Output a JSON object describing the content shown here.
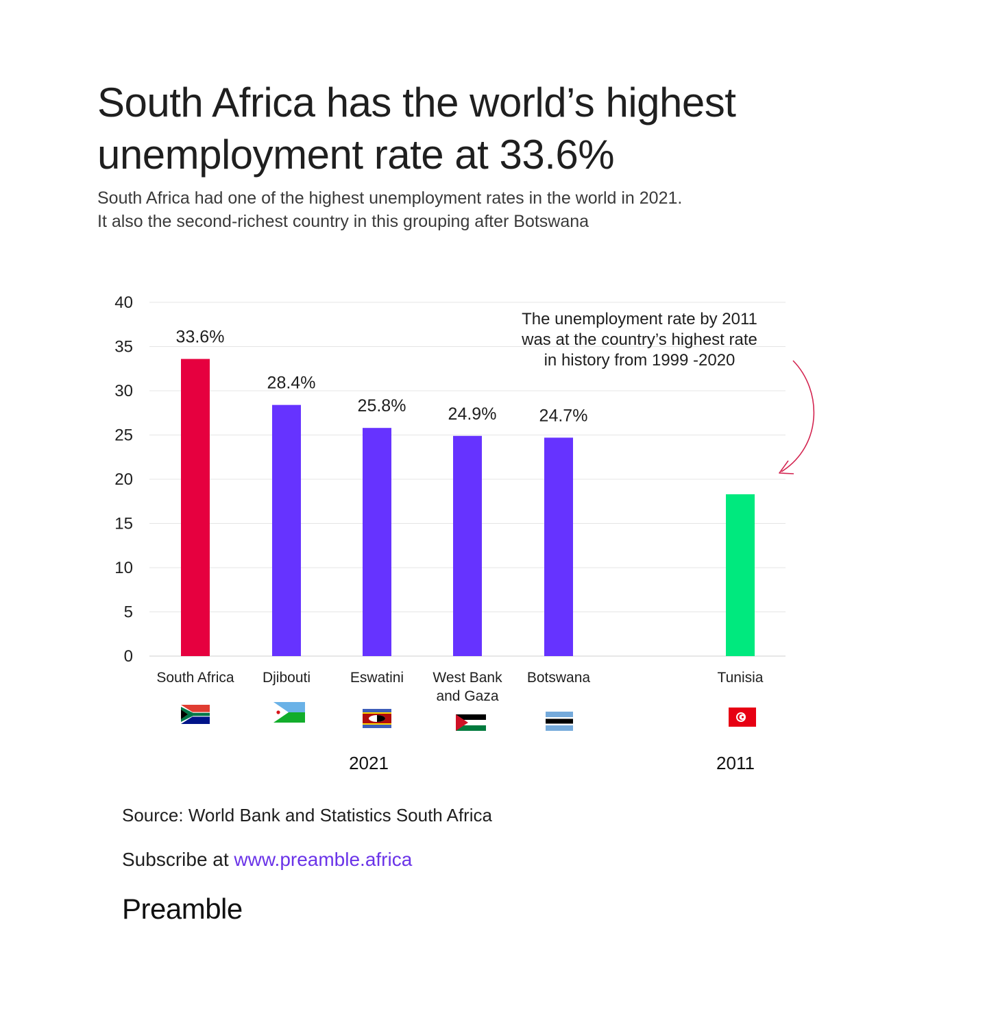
{
  "title": "South Africa has the world’s highest unemployment rate at 33.6%",
  "subtitle_line1": "South Africa had one of the highest unemployment rates in the world in 2021.",
  "subtitle_line2": "It also the second-richest country in this grouping after Botswana",
  "source": "Source: World Bank and Statistics South Africa",
  "subscribe_prefix": "Subscribe at ",
  "subscribe_link": "www.preamble.africa",
  "brand": "Preamble",
  "colors": {
    "highlight": "#e6003f",
    "primary": "#6633ff",
    "comparison": "#00e97e",
    "annotation_arrow": "#d3234f",
    "link": "#6a33e8"
  },
  "chart_data": {
    "type": "bar",
    "title": "",
    "xlabel": "",
    "ylabel": "",
    "ylim": [
      0,
      40
    ],
    "yticks": [
      0,
      5,
      10,
      15,
      20,
      25,
      30,
      35,
      40
    ],
    "grid": true,
    "groups": [
      {
        "label": "2021",
        "categories": [
          "South Africa",
          "Djibouti",
          "Eswatini",
          "West Bank and Gaza",
          "Botswana"
        ]
      },
      {
        "label": "2011",
        "categories": [
          "Tunisia"
        ]
      }
    ],
    "bars": [
      {
        "category": "South Africa",
        "label_lines": [
          "South Africa"
        ],
        "value": 33.6,
        "data_label": "33.6%",
        "color": "#e6003f",
        "flag": "south-africa"
      },
      {
        "category": "Djibouti",
        "label_lines": [
          "Djibouti"
        ],
        "value": 28.4,
        "data_label": "28.4%",
        "color": "#6633ff",
        "flag": "djibouti"
      },
      {
        "category": "Eswatini",
        "label_lines": [
          "Eswatini"
        ],
        "value": 25.8,
        "data_label": "25.8%",
        "color": "#6633ff",
        "flag": "eswatini"
      },
      {
        "category": "West Bank and Gaza",
        "label_lines": [
          "West Bank",
          "and Gaza"
        ],
        "value": 24.9,
        "data_label": "24.9%",
        "color": "#6633ff",
        "flag": "palestine"
      },
      {
        "category": "Botswana",
        "label_lines": [
          "Botswana"
        ],
        "value": 24.7,
        "data_label": "24.7%",
        "color": "#6633ff",
        "flag": "botswana"
      },
      {
        "category": "Tunisia",
        "label_lines": [
          "Tunisia"
        ],
        "value": 18.3,
        "data_label": "",
        "color": "#00e97e",
        "flag": "tunisia"
      }
    ],
    "annotation": {
      "lines": [
        "The unemployment rate by 2011",
        "was at the country’s highest rate",
        "in history from 1999 -2020"
      ],
      "target": "Tunisia"
    }
  }
}
